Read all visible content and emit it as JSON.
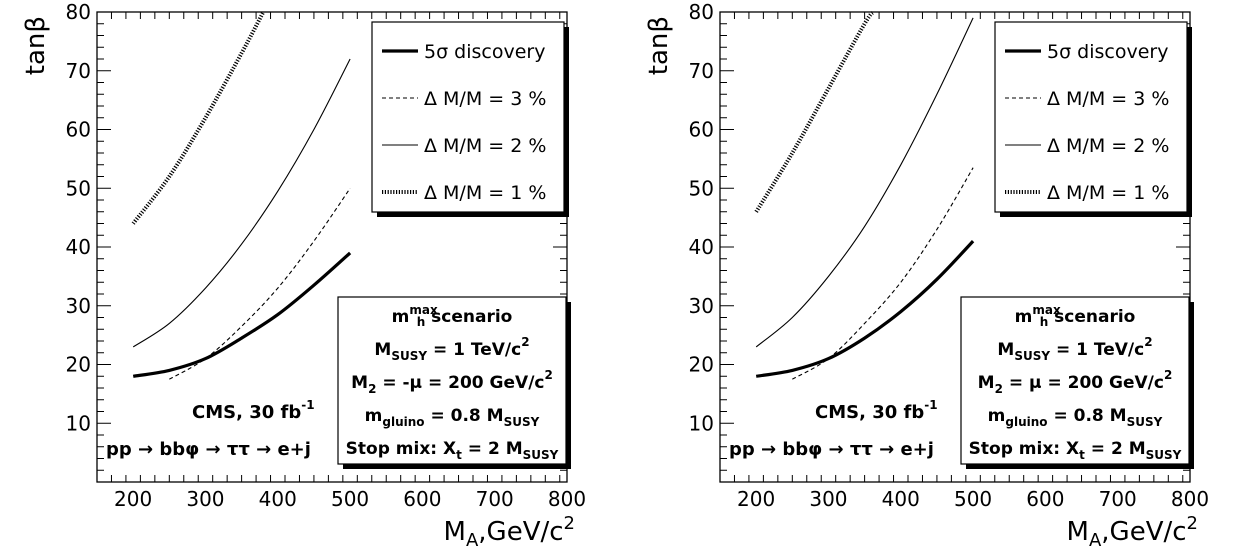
{
  "chart_data": [
    {
      "type": "line",
      "xlabel": "M_A,GeV/c^2",
      "xlabel_parts": {
        "main": "M",
        "sub": "A",
        "unit": ",GeV/c",
        "sup": "2"
      },
      "ylabel": "tanβ",
      "xlim": [
        150,
        800
      ],
      "ylim": [
        0,
        80
      ],
      "x_ticks": [
        "200",
        "300",
        "400",
        "500",
        "600",
        "700",
        "800"
      ],
      "y_ticks": [
        "10",
        "20",
        "30",
        "40",
        "50",
        "60",
        "70",
        "80"
      ],
      "legend_position": "top-right",
      "series": [
        {
          "name": "5σ discovery",
          "style": "thick",
          "x": [
            200,
            250,
            300,
            350,
            400,
            450,
            500
          ],
          "y": [
            18,
            19,
            21,
            24.5,
            28.5,
            33.5,
            39
          ]
        },
        {
          "name": "Δ M/M = 3 %",
          "style": "dashed",
          "x": [
            250,
            300,
            350,
            400,
            450,
            500
          ],
          "y": [
            17.5,
            21,
            26.5,
            33,
            41,
            50
          ]
        },
        {
          "name": "Δ M/M = 2 %",
          "style": "solid",
          "x": [
            200,
            250,
            300,
            350,
            400,
            450,
            500
          ],
          "y": [
            23,
            27,
            33,
            40.5,
            49.5,
            60,
            72
          ]
        },
        {
          "name": "Δ M/M = 1 %",
          "style": "dotted",
          "x": [
            200,
            250,
            300,
            350,
            380
          ],
          "y": [
            44,
            52,
            62,
            73,
            80
          ]
        }
      ],
      "scenario_box": [
        {
          "main": "m",
          "sub": "h",
          "sup": "max",
          "rest": " scenario"
        },
        {
          "main": "M",
          "sub": "SUSY",
          "rest": " = 1 TeV/c",
          "sup2": "2"
        },
        {
          "main": "M",
          "sub": "2",
          "rest": " = -μ = 200 GeV/c",
          "sup2": "2"
        },
        {
          "main": "m",
          "sub": "gluino",
          "rest": " = 0.8 M",
          "sub2": "SUSY"
        },
        {
          "main": "Stop mix: X",
          "sub": "t",
          "rest": " = 2 M",
          "sub2": "SUSY"
        }
      ],
      "annotations": {
        "cms": "CMS, 30 fb",
        "cms_sup": "-1",
        "process": "pp → bbφ → ττ → e+j"
      }
    },
    {
      "type": "line",
      "xlabel": "M_A,GeV/c^2",
      "xlabel_parts": {
        "main": "M",
        "sub": "A",
        "unit": ",GeV/c",
        "sup": "2"
      },
      "ylabel": "tanβ",
      "xlim": [
        150,
        800
      ],
      "ylim": [
        0,
        80
      ],
      "x_ticks": [
        "200",
        "300",
        "400",
        "500",
        "600",
        "700",
        "800"
      ],
      "y_ticks": [
        "10",
        "20",
        "30",
        "40",
        "50",
        "60",
        "70",
        "80"
      ],
      "legend_position": "top-right",
      "series": [
        {
          "name": "5σ discovery",
          "style": "thick",
          "x": [
            200,
            250,
            300,
            350,
            400,
            450,
            500
          ],
          "y": [
            18,
            19,
            21,
            24.5,
            29,
            34.5,
            41
          ]
        },
        {
          "name": "Δ M/M = 3 %",
          "style": "dashed",
          "x": [
            250,
            300,
            350,
            400,
            450,
            500
          ],
          "y": [
            17.5,
            21,
            27,
            34,
            43,
            53.5
          ]
        },
        {
          "name": "Δ M/M = 2 %",
          "style": "solid",
          "x": [
            200,
            250,
            300,
            350,
            400,
            450,
            500
          ],
          "y": [
            23,
            28,
            35,
            43.5,
            54,
            66,
            79
          ]
        },
        {
          "name": "Δ M/M = 1 %",
          "style": "dotted",
          "x": [
            200,
            250,
            300,
            350,
            362
          ],
          "y": [
            46,
            56,
            67,
            78,
            80
          ]
        }
      ],
      "scenario_box": [
        {
          "main": "m",
          "sub": "h",
          "sup": "max",
          "rest": " scenario"
        },
        {
          "main": "M",
          "sub": "SUSY",
          "rest": " = 1 TeV/c",
          "sup2": "2"
        },
        {
          "main": "M",
          "sub": "2",
          "rest": " = μ = 200 GeV/c",
          "sup2": "2"
        },
        {
          "main": "m",
          "sub": "gluino",
          "rest": " = 0.8 M",
          "sub2": "SUSY"
        },
        {
          "main": "Stop mix: X",
          "sub": "t",
          "rest": " = 2 M",
          "sub2": "SUSY"
        }
      ],
      "annotations": {
        "cms": "CMS, 30 fb",
        "cms_sup": "-1",
        "process": "pp → bbφ → ττ → e+j"
      }
    }
  ]
}
